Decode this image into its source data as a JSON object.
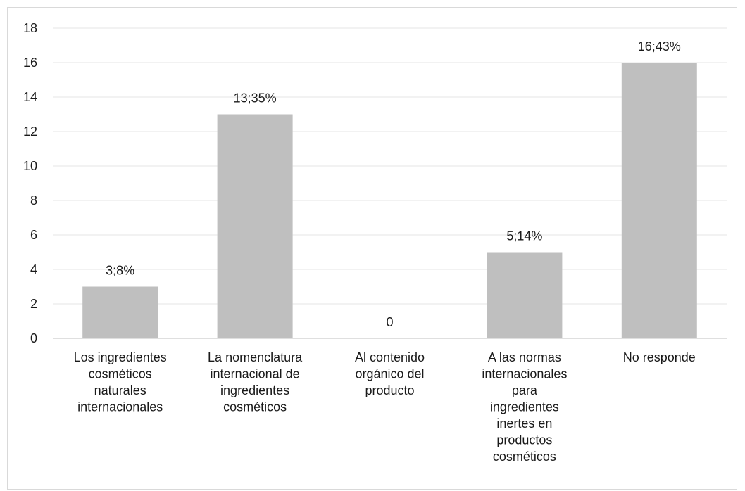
{
  "chart_data": {
    "type": "bar",
    "categories": [
      [
        "Los ingredientes",
        "cosméticos",
        "naturales",
        "internacionales"
      ],
      [
        "La nomenclatura",
        "internacional de",
        "ingredientes",
        "cosméticos"
      ],
      [
        "Al contenido",
        "orgánico del",
        "producto"
      ],
      [
        "A las normas",
        "internacionales",
        "para",
        "ingredientes",
        "inertes en",
        "productos",
        "cosméticos"
      ],
      [
        "No responde"
      ]
    ],
    "values": [
      3,
      13,
      0,
      5,
      16
    ],
    "data_labels": [
      "3;8%",
      "13;35%",
      "0",
      "5;14%",
      "16;43%"
    ],
    "yticks": [
      "0",
      "2",
      "4",
      "6",
      "8",
      "10",
      "12",
      "14",
      "16",
      "18"
    ],
    "ylim": [
      0,
      18
    ],
    "grid": true,
    "legend": "none",
    "colors": {
      "bar": "#bfbfbf",
      "grid": "#e6e6e6",
      "axis": "#bfbfbf"
    }
  }
}
